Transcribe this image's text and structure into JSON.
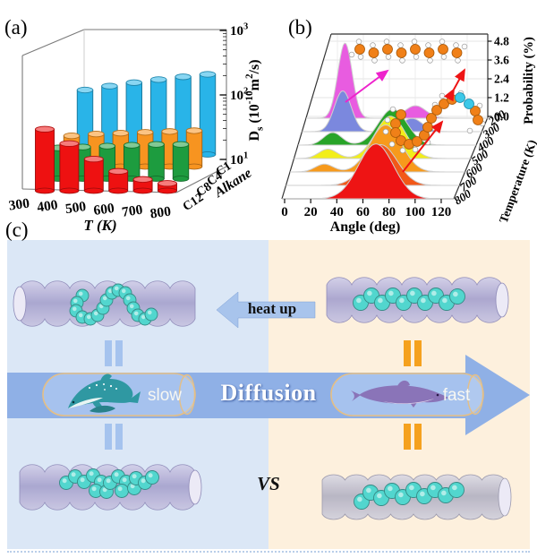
{
  "panels": {
    "a": {
      "label": "(a)"
    },
    "b": {
      "label": "(b)"
    },
    "c": {
      "label": "(c)",
      "heat_up_label": "heat up",
      "diffusion_label": "Diffusion",
      "slow_label": "slow",
      "fast_label": "fast",
      "vs_label": "VS",
      "colors": {
        "left_background": "#dbe7f6",
        "right_background": "#fdf0dd",
        "diffusion_arrow": "#8fb0e6",
        "heat_up_arrow": "#a8c4ec",
        "capsule_fill": "#a6c2ee",
        "capsule_border": "#e5bf85",
        "equals_left": "#a5c3ee",
        "equals_right": "#f5a11e",
        "nanotube": "#b3afd6",
        "nanotube_gray": "#c2c0cf",
        "alkane_beads": "#52d6ce",
        "dolphin_slow": "#2f98a2",
        "dolphin_fast": "#8a74b8"
      }
    }
  },
  "chart_data": [
    {
      "id": "panel_a",
      "type": "bar",
      "projection": "3d-cylinder",
      "xlabel": "T (K)",
      "ylabel": "D_{s} (10^{-10}m^{2}/s)",
      "zlabel": "Alkane",
      "categories": [
        "300",
        "400",
        "500",
        "600",
        "700",
        "800"
      ],
      "y_ticks": [
        "10^{1}",
        "10^{2}",
        "10^{3}"
      ],
      "y_scale": "log",
      "ylim": [
        10,
        1000
      ],
      "series": [
        {
          "name": "C12",
          "color": "#ee1111",
          "values": [
            90,
            54,
            31,
            20,
            15,
            13
          ]
        },
        {
          "name": "C8",
          "color": "#1d9c3f",
          "values": [
            30,
            31,
            32,
            33,
            34,
            34
          ]
        },
        {
          "name": "C4",
          "color": "#f79420",
          "values": [
            30,
            32,
            33,
            34,
            35,
            36
          ]
        },
        {
          "name": "C1",
          "color": "#29b4e8",
          "values": [
            100,
            115,
            130,
            145,
            160,
            175
          ]
        }
      ],
      "series_order_front_to_back": [
        "C12",
        "C8",
        "C4",
        "C1"
      ]
    },
    {
      "id": "panel_b",
      "type": "area",
      "projection": "3d-ridgeline",
      "xlabel": "Angle (deg)",
      "ylabel": "Probability (%)",
      "zlabel": "Temperature (K)",
      "x_ticks": [
        0,
        20,
        40,
        60,
        80,
        100,
        120
      ],
      "y_ticks": [
        "0.0",
        "1.2",
        "2.4",
        "3.6",
        "4.8"
      ],
      "z_ticks": [
        200,
        300,
        400,
        500,
        600,
        700,
        800
      ],
      "xlim": [
        0,
        120
      ],
      "ylim": [
        0,
        4.8
      ],
      "series": [
        {
          "temperature_K": 200,
          "color": "#e85ce0",
          "peaks": [
            {
              "center_deg": 36,
              "height_pct": 4.8,
              "width_deg": 5.5
            },
            {
              "center_deg": 90,
              "height_pct": 0.8,
              "width_deg": 8
            }
          ]
        },
        {
          "temperature_K": 300,
          "color": "#7b88de",
          "peaks": [
            {
              "center_deg": 36,
              "height_pct": 2.6,
              "width_deg": 6.5
            },
            {
              "center_deg": 89,
              "height_pct": 0.85,
              "width_deg": 8
            }
          ]
        },
        {
          "temperature_K": 400,
          "color": "#28a428",
          "peaks": [
            {
              "center_deg": 30,
              "height_pct": 0.8,
              "width_deg": 7
            },
            {
              "center_deg": 76,
              "height_pct": 2.3,
              "width_deg": 11
            }
          ]
        },
        {
          "temperature_K": 500,
          "color": "#f2ee1a",
          "peaks": [
            {
              "center_deg": 28,
              "height_pct": 0.6,
              "width_deg": 7
            },
            {
              "center_deg": 76,
              "height_pct": 2.7,
              "width_deg": 11.5
            }
          ]
        },
        {
          "temperature_K": 600,
          "color": "#f79a1c",
          "peaks": [
            {
              "center_deg": 27,
              "height_pct": 0.5,
              "width_deg": 7
            },
            {
              "center_deg": 74,
              "height_pct": 3.0,
              "width_deg": 12
            }
          ]
        },
        {
          "temperature_K": 700,
          "color": "#f25818",
          "peaks": [
            {
              "center_deg": 72,
              "height_pct": 2.6,
              "width_deg": 12.5
            }
          ]
        },
        {
          "temperature_K": 800,
          "color": "#ee1414",
          "peaks": [
            {
              "center_deg": 70,
              "height_pct": 3.5,
              "width_deg": 13.5
            }
          ]
        }
      ]
    }
  ]
}
